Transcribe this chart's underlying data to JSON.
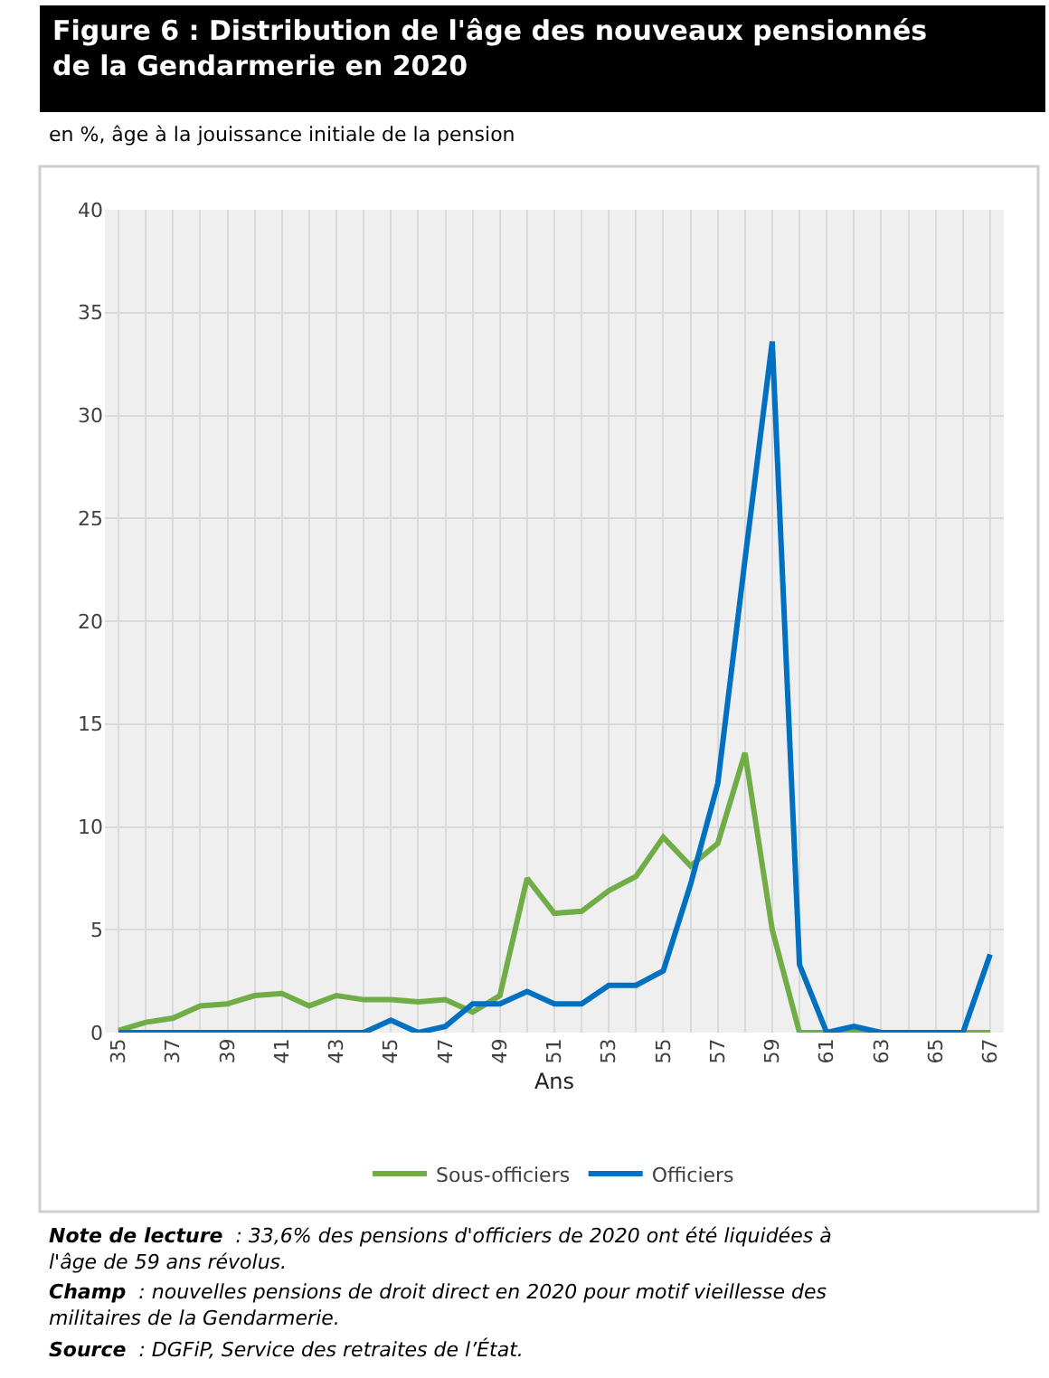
{
  "chart_data": {
    "type": "line",
    "title": "Figure 6 : Distribution de l'âge des nouveaux pensionnés de la Gendarmerie en 2020",
    "subtitle": "en %, âge à la jouissance initiale de la pension",
    "xlabel": "Ans",
    "categories": [
      "35",
      null,
      "37",
      null,
      "39",
      null,
      "41",
      null,
      "43",
      null,
      "45",
      null,
      "47",
      null,
      "49",
      null,
      "51",
      null,
      "53",
      null,
      "55",
      null,
      "57",
      null,
      "59",
      null,
      "61",
      null,
      "63",
      null,
      "65",
      null,
      "67"
    ],
    "series": [
      {
        "name": "Sous-officiers",
        "color": "#70ad47",
        "values": [
          0.1,
          0.5,
          0.7,
          1.3,
          1.4,
          1.8,
          1.9,
          1.3,
          1.8,
          1.6,
          1.6,
          1.5,
          1.6,
          1.0,
          1.8,
          7.5,
          5.8,
          5.9,
          6.9,
          7.6,
          9.5,
          8.1,
          9.2,
          13.6,
          5.0,
          0,
          0,
          0.1,
          0,
          0,
          0,
          0,
          0
        ]
      },
      {
        "name": "Officiers",
        "color": "#0070c0",
        "values": [
          0,
          0,
          0,
          0,
          0,
          0,
          0,
          0,
          0,
          0,
          0.6,
          0,
          0.3,
          1.4,
          1.4,
          2.0,
          1.4,
          1.4,
          2.3,
          2.3,
          3.0,
          7.2,
          12.1,
          23,
          33.6,
          3.3,
          0,
          0.3,
          0,
          0,
          0,
          0,
          3.8
        ]
      }
    ],
    "ylim": [
      0,
      40
    ],
    "yticks": [
      0,
      5,
      10,
      15,
      20,
      25,
      30,
      35,
      40
    ],
    "grid": true,
    "legend": "bottom",
    "marker": "none",
    "line_style": "solid",
    "annotations": [
      "Note de lecture : 33,6% des pensions d'officiers de 2020 ont été liquidées à l'âge de 59 ans révolus.",
      "Champ : nouvelles pensions de droit direct en 2020 pour motif vieillesse des militaires de la Gendarmerie.",
      "Source : DGFiP, Service des retraites de l’État."
    ]
  }
}
